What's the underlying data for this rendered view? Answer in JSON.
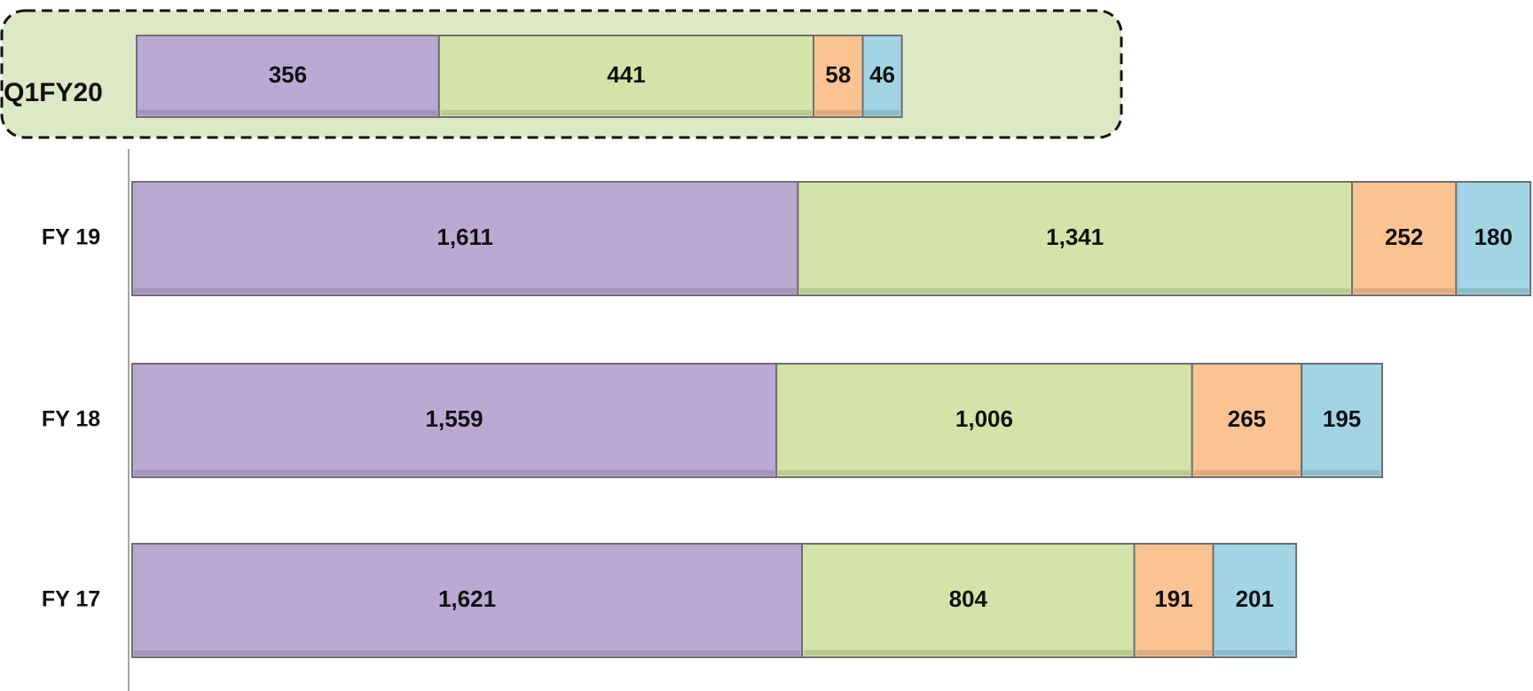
{
  "chart_data": [
    {
      "type": "bar",
      "orientation": "horizontal",
      "stacked": true,
      "categories": [
        "Q1FY20"
      ],
      "xlim": [
        0,
        1500
      ],
      "series": [
        {
          "color": "#bba9d4",
          "values": [
            356
          ]
        },
        {
          "color": "#d4e4a8",
          "values": [
            441
          ]
        },
        {
          "color": "#fbc392",
          "values": [
            58
          ]
        },
        {
          "color": "#a2d5e4",
          "values": [
            46
          ]
        }
      ]
    },
    {
      "type": "bar",
      "orientation": "horizontal",
      "stacked": true,
      "categories": [
        "FY 19",
        "FY 18",
        "FY 17"
      ],
      "xlim": [
        0,
        3390
      ],
      "series": [
        {
          "color": "#bba9d4",
          "values": [
            1611,
            1559,
            1621
          ],
          "value_labels": [
            "1,611",
            "1,559",
            "1,621"
          ]
        },
        {
          "color": "#d4e4a8",
          "values": [
            1341,
            1006,
            804
          ],
          "value_labels": [
            "1,341",
            "1,006",
            "804"
          ]
        },
        {
          "color": "#fbc392",
          "values": [
            252,
            265,
            191
          ],
          "value_labels": [
            "252",
            "265",
            "191"
          ]
        },
        {
          "color": "#a2d5e4",
          "values": [
            180,
            195,
            201
          ],
          "value_labels": [
            "180",
            "195",
            "201"
          ]
        }
      ]
    }
  ]
}
